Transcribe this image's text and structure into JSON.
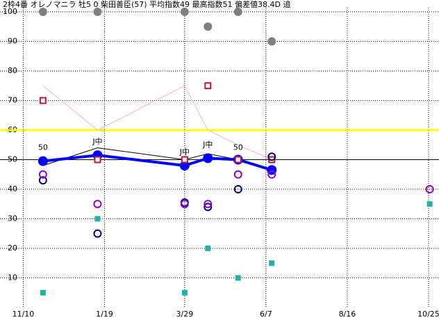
{
  "chart_data": {
    "type": "combo",
    "title": "2枠4番 オレノマニラ 牡5 0 柴田善臣(57) 平均指数49 最高指数51 偏差値38.4D 追",
    "xlim": [
      -20,
      358
    ],
    "xticks": [
      {
        "value": 0,
        "label": "11/10"
      },
      {
        "value": 70,
        "label": "1/19"
      },
      {
        "value": 139,
        "label": "3/29"
      },
      {
        "value": 209,
        "label": "6/7"
      },
      {
        "value": 279,
        "label": "8/16"
      },
      {
        "value": 349,
        "label": "10/25"
      }
    ],
    "ylim": [
      0,
      100
    ],
    "yticks": [
      10,
      20,
      30,
      40,
      50,
      60,
      70,
      80,
      90,
      100
    ],
    "grid": true,
    "hlines": [
      {
        "value": 50,
        "color": "#000000"
      },
      {
        "value": 60,
        "color": "#ffff00"
      }
    ],
    "series": [
      {
        "style": "line",
        "color": "#ffb6c1",
        "x": [
          17,
          64,
          139,
          159,
          185,
          214
        ],
        "values": [
          75,
          60,
          75,
          60,
          55,
          50
        ]
      },
      {
        "style": "line",
        "color": "#000000",
        "x": [
          17,
          64,
          139,
          159,
          185,
          214
        ],
        "values": [
          48,
          54,
          50,
          52,
          50,
          50
        ]
      },
      {
        "style": "thick",
        "color": "#0000ff",
        "x": [
          17,
          64,
          139,
          159,
          185,
          214
        ],
        "values": [
          49.5,
          51.5,
          48,
          50.5,
          50,
          46.5
        ]
      },
      {
        "style": "circle-filled",
        "color": "#808080",
        "x": [
          17,
          64,
          139,
          159,
          185,
          214
        ],
        "values": [
          100,
          100,
          100,
          95,
          100,
          90
        ]
      },
      {
        "style": "square-open",
        "color": "#c0143c",
        "x": [
          17,
          64,
          139,
          159,
          185,
          214
        ],
        "values": [
          70,
          50,
          50,
          75,
          50,
          50
        ]
      },
      {
        "style": "circle-open",
        "color": "#000080",
        "x": [
          17,
          64,
          139,
          159,
          185,
          214
        ],
        "values": [
          43,
          25,
          35.5,
          34,
          40,
          51
        ]
      },
      {
        "style": "circle-open",
        "color": "#9400d3",
        "x": [
          17,
          64,
          139,
          159,
          185,
          214,
          350
        ],
        "values": [
          45,
          35,
          35,
          35,
          45,
          45,
          40
        ]
      },
      {
        "style": "square-filled",
        "color": "#20b2aa",
        "x": [
          17,
          64,
          139,
          159,
          185,
          214,
          350
        ],
        "values": [
          5,
          30,
          5,
          20,
          10,
          15,
          35
        ]
      }
    ],
    "annotations": [
      {
        "x": 17,
        "y": 54,
        "text": "50"
      },
      {
        "x": 64,
        "y": 56,
        "text": "J中"
      },
      {
        "x": 139,
        "y": 52.5,
        "text": "J中"
      },
      {
        "x": 159,
        "y": 55,
        "text": "J中"
      },
      {
        "x": 185,
        "y": 54,
        "text": "50"
      }
    ]
  }
}
